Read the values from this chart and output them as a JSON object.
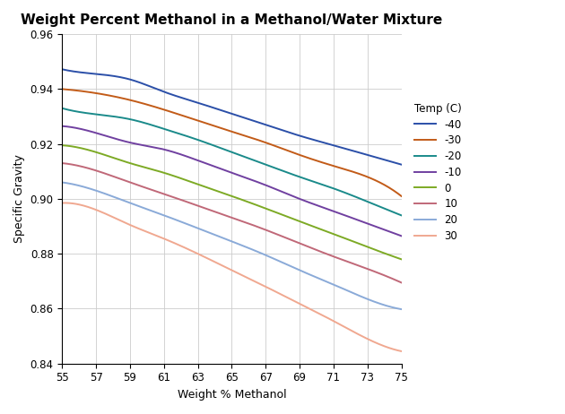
{
  "title": "Weight Percent Methanol in a Methanol/Water Mixture",
  "xlabel": "Weight % Methanol",
  "ylabel": "Specific Gravity",
  "xlim": [
    55,
    75
  ],
  "ylim": [
    0.84,
    0.96
  ],
  "xticks": [
    55,
    57,
    59,
    61,
    63,
    65,
    67,
    69,
    71,
    73,
    75
  ],
  "yticks": [
    0.84,
    0.86,
    0.88,
    0.9,
    0.92,
    0.94,
    0.96
  ],
  "legend_title": "Temp (C)",
  "series": [
    {
      "label": "-40",
      "color": "#2B4FA8",
      "y_values": [
        0.9472,
        0.9455,
        0.9435,
        0.939,
        0.935,
        0.931,
        0.927,
        0.923,
        0.9195,
        0.916,
        0.9125
      ]
    },
    {
      "label": "-30",
      "color": "#C25B18",
      "y_values": [
        0.94,
        0.9385,
        0.936,
        0.9325,
        0.9285,
        0.9245,
        0.9205,
        0.916,
        0.912,
        0.908,
        0.901
      ]
    },
    {
      "label": "-20",
      "color": "#1A8A8A",
      "y_values": [
        0.933,
        0.9308,
        0.929,
        0.9255,
        0.9215,
        0.917,
        0.9125,
        0.908,
        0.9038,
        0.899,
        0.894
      ]
    },
    {
      "label": "-10",
      "color": "#7040A0",
      "y_values": [
        0.9265,
        0.924,
        0.9205,
        0.918,
        0.914,
        0.9095,
        0.905,
        0.9,
        0.8955,
        0.891,
        0.8865
      ]
    },
    {
      "label": "0",
      "color": "#7DAA25",
      "y_values": [
        0.9195,
        0.917,
        0.913,
        0.9095,
        0.9053,
        0.901,
        0.8965,
        0.8918,
        0.8872,
        0.8825,
        0.878
      ]
    },
    {
      "label": "10",
      "color": "#C06878",
      "y_values": [
        0.913,
        0.9103,
        0.906,
        0.9018,
        0.8975,
        0.8932,
        0.8887,
        0.8838,
        0.879,
        0.8745,
        0.8695
      ]
    },
    {
      "label": "20",
      "color": "#8AAAD8",
      "y_values": [
        0.906,
        0.903,
        0.8985,
        0.894,
        0.8893,
        0.8845,
        0.8795,
        0.874,
        0.8688,
        0.8635,
        0.8598
      ]
    },
    {
      "label": "30",
      "color": "#F0A890",
      "y_values": [
        0.8985,
        0.896,
        0.8905,
        0.8855,
        0.88,
        0.874,
        0.868,
        0.8618,
        0.8555,
        0.849,
        0.8445
      ]
    }
  ],
  "x_values": [
    55,
    57,
    59,
    61,
    63,
    65,
    67,
    69,
    71,
    73,
    75
  ]
}
